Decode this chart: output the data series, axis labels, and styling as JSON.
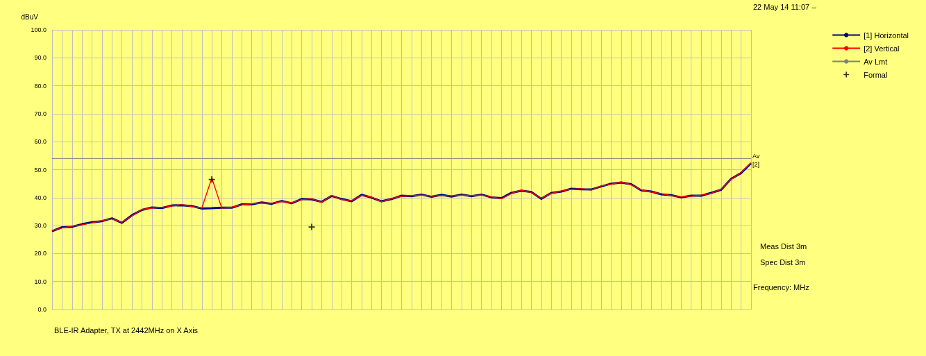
{
  "chart_data": {
    "type": "line",
    "ylabel": "dBuV",
    "categories": [
      null,
      null,
      null,
      null,
      null,
      null,
      null,
      null,
      null,
      null,
      null,
      null,
      null,
      null,
      null,
      null,
      null,
      null,
      null,
      null,
      null,
      null,
      null,
      null,
      null,
      null,
      null,
      null,
      null,
      null,
      null,
      null,
      null,
      null,
      null,
      null,
      null,
      null,
      null,
      null,
      null,
      null,
      null,
      null,
      null,
      null,
      null,
      null,
      null,
      null,
      null,
      null,
      null,
      null,
      null,
      null,
      null,
      null,
      null,
      null,
      null,
      null,
      null,
      null,
      null,
      null,
      null,
      null,
      null,
      null,
      null
    ],
    "series": [
      {
        "name": "[1] Horizontal",
        "color": "#000080",
        "values": [
          28.0,
          29.4,
          29.6,
          30.5,
          31.2,
          31.6,
          32.6,
          31.0,
          33.7,
          35.6,
          36.5,
          36.3,
          37.2,
          37.3,
          37.0,
          36.1,
          36.2,
          36.4,
          36.4,
          37.6,
          37.6,
          38.3,
          37.8,
          38.8,
          38.0,
          39.5,
          39.4,
          38.5,
          40.6,
          39.5,
          38.7,
          41.0,
          40.0,
          38.7,
          39.5,
          40.7,
          40.5,
          41.1,
          40.3,
          41.0,
          40.4,
          41.1,
          40.5,
          41.1,
          40.1,
          39.8,
          41.7,
          42.5,
          42.0,
          39.6,
          41.7,
          42.2,
          43.2,
          43.0,
          42.9,
          44.0,
          45.0,
          45.4,
          44.8,
          42.6,
          42.2,
          41.2,
          40.9,
          40.1,
          40.7,
          40.7,
          41.7,
          42.8,
          46.7,
          48.8,
          52.3
        ]
      },
      {
        "name": "[2] Vertical",
        "color": "#ff0000",
        "values": [
          28.2,
          29.2,
          29.8,
          30.3,
          31.0,
          31.8,
          32.4,
          31.2,
          33.5,
          35.8,
          36.3,
          36.5,
          37.0,
          37.5,
          36.8,
          36.3,
          47.0,
          36.2,
          36.6,
          37.4,
          37.8,
          38.1,
          38.0,
          38.6,
          38.2,
          39.3,
          39.6,
          38.3,
          40.8,
          39.3,
          38.9,
          40.8,
          40.2,
          38.5,
          39.7,
          40.5,
          40.7,
          40.9,
          40.5,
          40.8,
          40.6,
          40.9,
          40.7,
          40.9,
          40.3,
          39.6,
          41.5,
          42.7,
          41.8,
          39.8,
          41.5,
          42.4,
          43.0,
          43.2,
          42.7,
          44.2,
          44.8,
          45.6,
          44.6,
          42.8,
          42.0,
          41.4,
          40.7,
          40.3,
          40.5,
          40.9,
          41.5,
          43.0,
          46.5,
          49.0,
          52.5
        ]
      },
      {
        "name": "Av Lmt",
        "color": "#808080",
        "values": [
          54,
          54,
          54,
          54,
          54,
          54,
          54,
          54,
          54,
          54,
          54,
          54,
          54,
          54,
          54,
          54,
          54,
          54,
          54,
          54,
          54,
          54,
          54,
          54,
          54,
          54,
          54,
          54,
          54,
          54,
          54,
          54,
          54,
          54,
          54,
          54,
          54,
          54,
          54,
          54,
          54,
          54,
          54,
          54,
          54,
          54,
          54,
          54,
          54,
          54,
          54,
          54,
          54,
          54,
          54,
          54,
          54,
          54,
          54,
          54,
          54,
          54,
          54,
          54,
          54,
          54,
          54,
          54,
          54,
          54,
          54
        ]
      },
      {
        "name": "Formal",
        "type": "scatter",
        "marker": "cross",
        "color": "#000000",
        "values": [
          null,
          null,
          null,
          null,
          null,
          null,
          null,
          null,
          null,
          null,
          null,
          null,
          null,
          null,
          null,
          null,
          46.5,
          null,
          null,
          null,
          null,
          null,
          null,
          null,
          null,
          null,
          29.5,
          null,
          null,
          null,
          null,
          null,
          null,
          null,
          null,
          null,
          null,
          null,
          null,
          null,
          null,
          null,
          null,
          null,
          null,
          null,
          null,
          null,
          null,
          null,
          null,
          null,
          null,
          null,
          null,
          null,
          null,
          null,
          null,
          null,
          null,
          null,
          null,
          null,
          null,
          null,
          null,
          null,
          null,
          null,
          null
        ]
      }
    ],
    "ylim": [
      0,
      100
    ],
    "yticks": [
      {
        "value": 0,
        "label": "0.0"
      },
      {
        "value": 10,
        "label": "10.0"
      },
      {
        "value": 20,
        "label": "20.0"
      },
      {
        "value": 30,
        "label": "30.0"
      },
      {
        "value": 40,
        "label": "40.0"
      },
      {
        "value": 50,
        "label": "50.0"
      },
      {
        "value": 60,
        "label": "60.0"
      },
      {
        "value": 70,
        "label": "70.0"
      },
      {
        "value": 80,
        "label": "80.0"
      },
      {
        "value": 90,
        "label": "90.0"
      },
      {
        "value": 100,
        "label": "100.0"
      }
    ],
    "grid": true,
    "legend": "top right",
    "marker": "none",
    "line_style": "solid",
    "tick_labels": "y",
    "annotations": [
      "22 May 14 11:07 --",
      "Meas Dist 3m",
      "Spec Dist 3m",
      "Frequency: MHz",
      "BLE-IR Adapter, TX at 2442MHz on X Axis",
      "Av",
      "[2]"
    ]
  }
}
